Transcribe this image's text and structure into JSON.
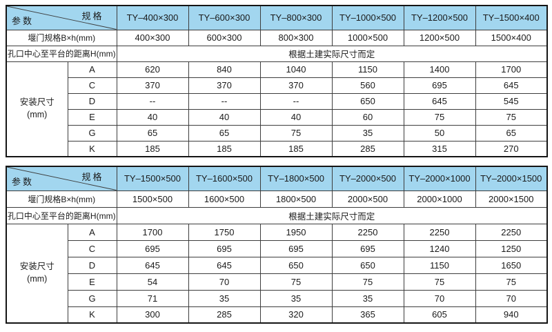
{
  "colors": {
    "header_bg": "#a2d6ef",
    "outer_border": "#141414",
    "grid_line": "#3c3c3c",
    "text": "#1a1a1a",
    "page_bg": "#ffffff"
  },
  "labels": {
    "spec": "规格",
    "param": "参数",
    "gate_spec_row": "堰门规格B×h(mm)",
    "distance_row": "孔口中心至平台的距离H(mm)",
    "distance_value": "根据土建实际尺寸而定",
    "install_group_line1": "安装尺寸",
    "install_group_line2": "(mm)"
  },
  "tables": [
    {
      "models": [
        "TY–400×300",
        "TY–600×300",
        "TY–800×300",
        "TY–1000×500",
        "TY–1200×500",
        "TY–1500×400"
      ],
      "gate_specs": [
        "400×300",
        "600×300",
        "800×300",
        "1000×500",
        "1200×500",
        "1500×400"
      ],
      "install_rows": [
        {
          "key": "A",
          "values": [
            "620",
            "840",
            "1040",
            "1150",
            "1400",
            "1700"
          ]
        },
        {
          "key": "C",
          "values": [
            "370",
            "370",
            "370",
            "560",
            "695",
            "645"
          ]
        },
        {
          "key": "D",
          "values": [
            "--",
            "--",
            "--",
            "650",
            "645",
            "545"
          ]
        },
        {
          "key": "E",
          "values": [
            "40",
            "40",
            "40",
            "60",
            "75",
            "75"
          ]
        },
        {
          "key": "G",
          "values": [
            "65",
            "65",
            "75",
            "35",
            "50",
            "65"
          ]
        },
        {
          "key": "K",
          "values": [
            "185",
            "185",
            "185",
            "285",
            "315",
            "270"
          ]
        }
      ]
    },
    {
      "models": [
        "TY–1500×500",
        "TY–1600×500",
        "TY–1800×500",
        "TY–2000×500",
        "TY–2000×1000",
        "TY–2000×1500"
      ],
      "gate_specs": [
        "1500×500",
        "1600×500",
        "1800×500",
        "2000×500",
        "2000×1000",
        "2000×1500"
      ],
      "install_rows": [
        {
          "key": "A",
          "values": [
            "1700",
            "1750",
            "1950",
            "2250",
            "2250",
            "2250"
          ]
        },
        {
          "key": "C",
          "values": [
            "695",
            "695",
            "695",
            "695",
            "1240",
            "1250"
          ]
        },
        {
          "key": "D",
          "values": [
            "645",
            "645",
            "650",
            "650",
            "1150",
            "1650"
          ]
        },
        {
          "key": "E",
          "values": [
            "54",
            "70",
            "75",
            "75",
            "75",
            "75"
          ]
        },
        {
          "key": "G",
          "values": [
            "71",
            "35",
            "35",
            "35",
            "70",
            "70"
          ]
        },
        {
          "key": "K",
          "values": [
            "300",
            "285",
            "320",
            "365",
            "605",
            "940"
          ]
        }
      ]
    }
  ]
}
